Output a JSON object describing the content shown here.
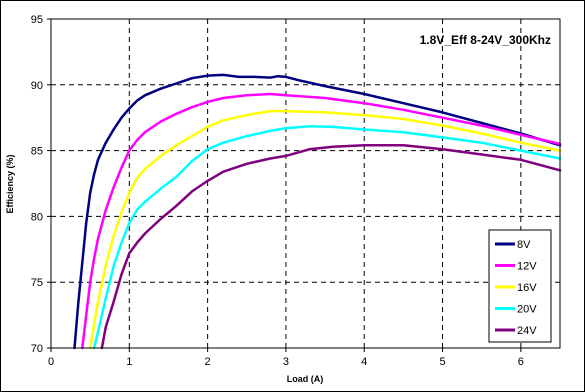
{
  "chart_data": {
    "type": "line",
    "title": "1.8V_Eff 8-24V_300Khz",
    "xlabel": "Load (A)",
    "ylabel": "Efficiency (%)",
    "xlim": [
      0,
      6.5
    ],
    "ylim": [
      70,
      95
    ],
    "xticks": [
      0,
      1,
      2,
      3,
      4,
      5,
      6
    ],
    "yticks": [
      70,
      75,
      80,
      85,
      90,
      95
    ],
    "grid": true,
    "legend_position": "bottom-right",
    "series": [
      {
        "name": "8V",
        "color": "#000080",
        "x": [
          0.3,
          0.35,
          0.4,
          0.45,
          0.5,
          0.55,
          0.6,
          0.7,
          0.8,
          0.9,
          1.0,
          1.1,
          1.2,
          1.4,
          1.6,
          1.8,
          2.0,
          2.2,
          2.4,
          2.6,
          2.8,
          2.9,
          3.0,
          3.2,
          3.5,
          4.0,
          4.5,
          5.0,
          5.5,
          6.0,
          6.5
        ],
        "values": [
          70.0,
          73.5,
          76.5,
          79.5,
          81.8,
          83.2,
          84.3,
          85.6,
          86.6,
          87.5,
          88.2,
          88.8,
          89.2,
          89.7,
          90.1,
          90.5,
          90.7,
          90.75,
          90.6,
          90.6,
          90.55,
          90.65,
          90.6,
          90.3,
          89.9,
          89.3,
          88.6,
          87.9,
          87.1,
          86.3,
          85.4
        ]
      },
      {
        "name": "12V",
        "color": "#FF00FF",
        "x": [
          0.4,
          0.45,
          0.5,
          0.55,
          0.6,
          0.7,
          0.8,
          0.9,
          1.0,
          1.1,
          1.2,
          1.4,
          1.6,
          1.8,
          2.0,
          2.2,
          2.5,
          2.8,
          3.0,
          3.5,
          4.0,
          4.5,
          5.0,
          5.5,
          6.0,
          6.5
        ],
        "values": [
          70.0,
          72.5,
          75.0,
          76.8,
          78.3,
          80.5,
          82.2,
          83.7,
          85.0,
          85.8,
          86.4,
          87.2,
          87.8,
          88.3,
          88.7,
          89.0,
          89.2,
          89.3,
          89.2,
          89.0,
          88.6,
          88.1,
          87.5,
          86.9,
          86.2,
          85.5
        ]
      },
      {
        "name": "16V",
        "color": "#FFFF00",
        "x": [
          0.5,
          0.55,
          0.6,
          0.7,
          0.8,
          0.9,
          1.0,
          1.1,
          1.2,
          1.4,
          1.6,
          1.8,
          2.0,
          2.2,
          2.5,
          2.8,
          3.0,
          3.5,
          4.0,
          4.5,
          5.0,
          5.5,
          6.0,
          6.5
        ],
        "values": [
          70.0,
          71.8,
          73.5,
          76.3,
          78.5,
          80.3,
          81.8,
          82.9,
          83.6,
          84.6,
          85.4,
          86.1,
          86.8,
          87.3,
          87.7,
          88.0,
          88.0,
          87.9,
          87.7,
          87.4,
          86.9,
          86.3,
          85.6,
          85.0
        ]
      },
      {
        "name": "20V",
        "color": "#00FFFF",
        "x": [
          0.55,
          0.6,
          0.7,
          0.8,
          0.9,
          1.0,
          1.1,
          1.2,
          1.4,
          1.6,
          1.8,
          2.0,
          2.2,
          2.5,
          2.8,
          3.0,
          3.3,
          3.6,
          4.0,
          4.5,
          5.0,
          5.5,
          6.0,
          6.5
        ],
        "values": [
          70.0,
          71.2,
          73.8,
          76.2,
          78.0,
          79.5,
          80.5,
          81.1,
          82.1,
          83.0,
          84.2,
          85.1,
          85.6,
          86.1,
          86.5,
          86.7,
          86.85,
          86.8,
          86.6,
          86.4,
          86.0,
          85.6,
          85.0,
          84.4
        ]
      },
      {
        "name": "24V",
        "color": "#800080",
        "x": [
          0.65,
          0.7,
          0.8,
          0.9,
          1.0,
          1.1,
          1.2,
          1.4,
          1.6,
          1.8,
          2.0,
          2.2,
          2.5,
          2.8,
          3.0,
          3.3,
          3.6,
          4.0,
          4.5,
          5.0,
          5.5,
          6.0,
          6.5
        ],
        "values": [
          70.0,
          71.6,
          73.5,
          75.6,
          77.2,
          78.0,
          78.7,
          79.8,
          80.8,
          81.9,
          82.7,
          83.4,
          84.0,
          84.4,
          84.6,
          85.1,
          85.3,
          85.4,
          85.4,
          85.1,
          84.7,
          84.3,
          83.5
        ]
      }
    ]
  }
}
